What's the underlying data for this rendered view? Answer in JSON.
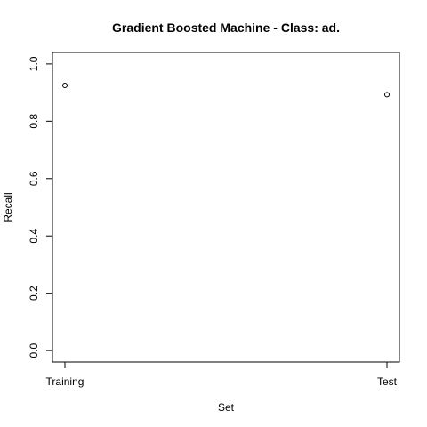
{
  "chart_data": {
    "type": "scatter",
    "title": "Gradient Boosted Machine - Class: ad.",
    "xlabel": "Set",
    "ylabel": "Recall",
    "categories": [
      "Training",
      "Test"
    ],
    "values": [
      0.925,
      0.893
    ],
    "ylim": [
      -0.04,
      1.04
    ],
    "yticks": [
      0.0,
      0.2,
      0.4,
      0.6,
      0.8,
      1.0
    ],
    "ytick_labels": [
      "0.0",
      "0.2",
      "0.4",
      "0.6",
      "0.8",
      "1.0"
    ],
    "grid": false,
    "point_style": "open-circle"
  }
}
